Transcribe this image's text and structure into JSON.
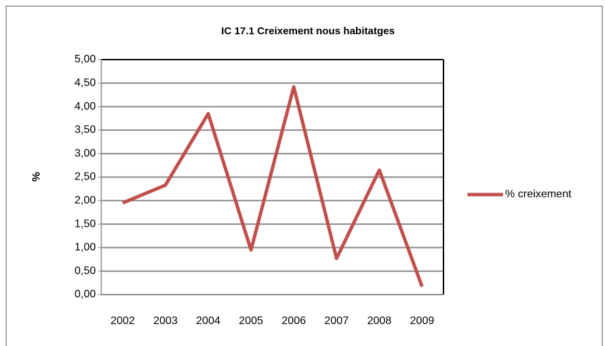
{
  "chart_data": {
    "type": "line",
    "title": "IC 17.1 Creixement nous habitatges",
    "y_label": "%",
    "categories": [
      "2002",
      "2003",
      "2004",
      "2005",
      "2006",
      "2007",
      "2008",
      "2009"
    ],
    "series": [
      {
        "name": "% creixement",
        "color": "#c0504d",
        "values": [
          1.95,
          2.33,
          3.85,
          0.95,
          4.42,
          0.77,
          2.65,
          0.17
        ]
      }
    ],
    "ylim": [
      0,
      5
    ],
    "yticks": [
      {
        "value": 0,
        "label": "0,00"
      },
      {
        "value": 0.5,
        "label": "0,50"
      },
      {
        "value": 1,
        "label": "1,00"
      },
      {
        "value": 1.5,
        "label": "1,50"
      },
      {
        "value": 2,
        "label": "2,00"
      },
      {
        "value": 2.5,
        "label": "2,50"
      },
      {
        "value": 3,
        "label": "3,00"
      },
      {
        "value": 3.5,
        "label": "3,50"
      },
      {
        "value": 4,
        "label": "4,00"
      },
      {
        "value": 4.5,
        "label": "4,50"
      },
      {
        "value": 5,
        "label": "5,00"
      }
    ],
    "grid": true,
    "legend": "right"
  }
}
